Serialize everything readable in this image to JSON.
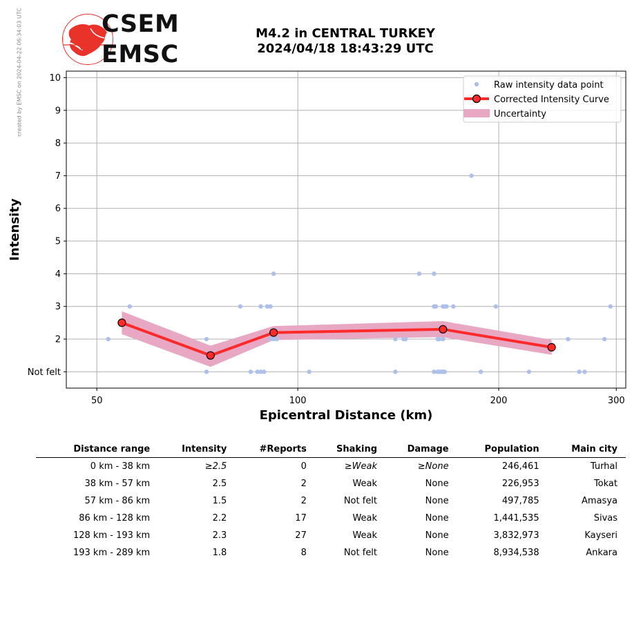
{
  "side_note": "created by EMSC on 2024-04-22 06:34:03 UTC",
  "logo": {
    "top": "CSEM",
    "bottom": "EMSC"
  },
  "heading": {
    "line1": "M4.2 in CENTRAL TURKEY",
    "line2": "2024/04/18 18:43:29 UTC"
  },
  "colors": {
    "raw": "#aec0ea",
    "curve": "#ff2a2a",
    "uncertainty": "#e8a8c4",
    "marker_edge": "#000000",
    "logo_red": "#e8322a"
  },
  "chart_data": {
    "type": "scatter",
    "xlabel": "Epicentral Distance (km)",
    "ylabel": "Intensity",
    "x_scale": "log",
    "xlim": [
      45,
      310
    ],
    "ylim": [
      0.5,
      10.2
    ],
    "x_ticks": [
      {
        "value": 50,
        "label": "50"
      },
      {
        "value": 100,
        "label": "100"
      },
      {
        "value": 200,
        "label": "200"
      },
      {
        "value": 300,
        "label": "300"
      }
    ],
    "y_ticks": [
      {
        "value": 1,
        "label": "Not felt"
      },
      {
        "value": 2,
        "label": "2"
      },
      {
        "value": 3,
        "label": "3"
      },
      {
        "value": 4,
        "label": "4"
      },
      {
        "value": 5,
        "label": "5"
      },
      {
        "value": 6,
        "label": "6"
      },
      {
        "value": 7,
        "label": "7"
      },
      {
        "value": 8,
        "label": "8"
      },
      {
        "value": 9,
        "label": "9"
      },
      {
        "value": 10,
        "label": "10"
      }
    ],
    "grid": true,
    "legend_position": "top-right",
    "legend": [
      {
        "key": "raw",
        "label": "Raw intensity data point"
      },
      {
        "key": "curve",
        "label": "Corrected Intensity Curve"
      },
      {
        "key": "uncertainty",
        "label": "Uncertainty"
      }
    ],
    "series": [
      {
        "name": "Raw intensity data point",
        "points": [
          [
            52,
            2
          ],
          [
            56,
            3
          ],
          [
            73,
            2
          ],
          [
            73,
            1
          ],
          [
            82,
            3
          ],
          [
            85,
            1
          ],
          [
            87,
            1
          ],
          [
            88,
            3
          ],
          [
            88,
            1
          ],
          [
            89,
            1
          ],
          [
            90,
            3
          ],
          [
            91,
            3
          ],
          [
            91,
            2
          ],
          [
            92,
            4
          ],
          [
            92,
            2
          ],
          [
            93,
            2
          ],
          [
            104,
            1
          ],
          [
            140,
            2
          ],
          [
            140,
            1
          ],
          [
            144,
            2
          ],
          [
            145,
            2
          ],
          [
            152,
            4
          ],
          [
            160,
            4
          ],
          [
            160,
            3
          ],
          [
            161,
            3
          ],
          [
            162,
            2
          ],
          [
            163,
            2
          ],
          [
            165,
            2
          ],
          [
            165,
            3
          ],
          [
            166,
            3
          ],
          [
            167,
            3
          ],
          [
            160,
            1
          ],
          [
            162,
            1
          ],
          [
            163,
            1
          ],
          [
            164,
            1
          ],
          [
            165,
            1
          ],
          [
            166,
            1
          ],
          [
            171,
            3
          ],
          [
            182,
            7
          ],
          [
            188,
            1
          ],
          [
            198,
            3
          ],
          [
            222,
            1
          ],
          [
            254,
            2
          ],
          [
            264,
            1
          ],
          [
            269,
            1
          ],
          [
            288,
            2
          ],
          [
            294,
            3
          ]
        ]
      },
      {
        "name": "Corrected Intensity Curve",
        "points": [
          [
            54.5,
            2.5
          ],
          [
            74,
            1.5
          ],
          [
            92,
            2.2
          ],
          [
            165,
            2.3
          ],
          [
            240,
            1.75
          ]
        ]
      },
      {
        "name": "Uncertainty",
        "lower": [
          [
            54.5,
            2.15
          ],
          [
            74,
            1.15
          ],
          [
            92,
            1.97
          ],
          [
            165,
            2.06
          ],
          [
            240,
            1.52
          ]
        ],
        "upper": [
          [
            54.5,
            2.85
          ],
          [
            74,
            1.8
          ],
          [
            92,
            2.4
          ],
          [
            165,
            2.55
          ],
          [
            240,
            1.98
          ]
        ]
      }
    ]
  },
  "table": {
    "headers": [
      "Distance range",
      "Intensity",
      "#Reports",
      "Shaking",
      "Damage",
      "Population",
      "Main city"
    ],
    "rows": [
      {
        "distance": "0 km -   38 km",
        "intensity": "≥2.5",
        "reports": "0",
        "shaking": "≥Weak",
        "damage": "≥None",
        "population": "246,461",
        "city": "Turhal",
        "italic": true
      },
      {
        "distance": "38 km -   57 km",
        "intensity": "2.5",
        "reports": "2",
        "shaking": "Weak",
        "damage": "None",
        "population": "226,953",
        "city": "Tokat",
        "italic": false
      },
      {
        "distance": "57 km -   86 km",
        "intensity": "1.5",
        "reports": "2",
        "shaking": "Not felt",
        "damage": "None",
        "population": "497,785",
        "city": "Amasya",
        "italic": false
      },
      {
        "distance": "86 km -  128 km",
        "intensity": "2.2",
        "reports": "17",
        "shaking": "Weak",
        "damage": "None",
        "population": "1,441,535",
        "city": "Sivas",
        "italic": false
      },
      {
        "distance": "128 km -  193 km",
        "intensity": "2.3",
        "reports": "27",
        "shaking": "Weak",
        "damage": "None",
        "population": "3,832,973",
        "city": "Kayseri",
        "italic": false
      },
      {
        "distance": "193 km -  289 km",
        "intensity": "1.8",
        "reports": "8",
        "shaking": "Not felt",
        "damage": "None",
        "population": "8,934,538",
        "city": "Ankara",
        "italic": false
      }
    ]
  }
}
